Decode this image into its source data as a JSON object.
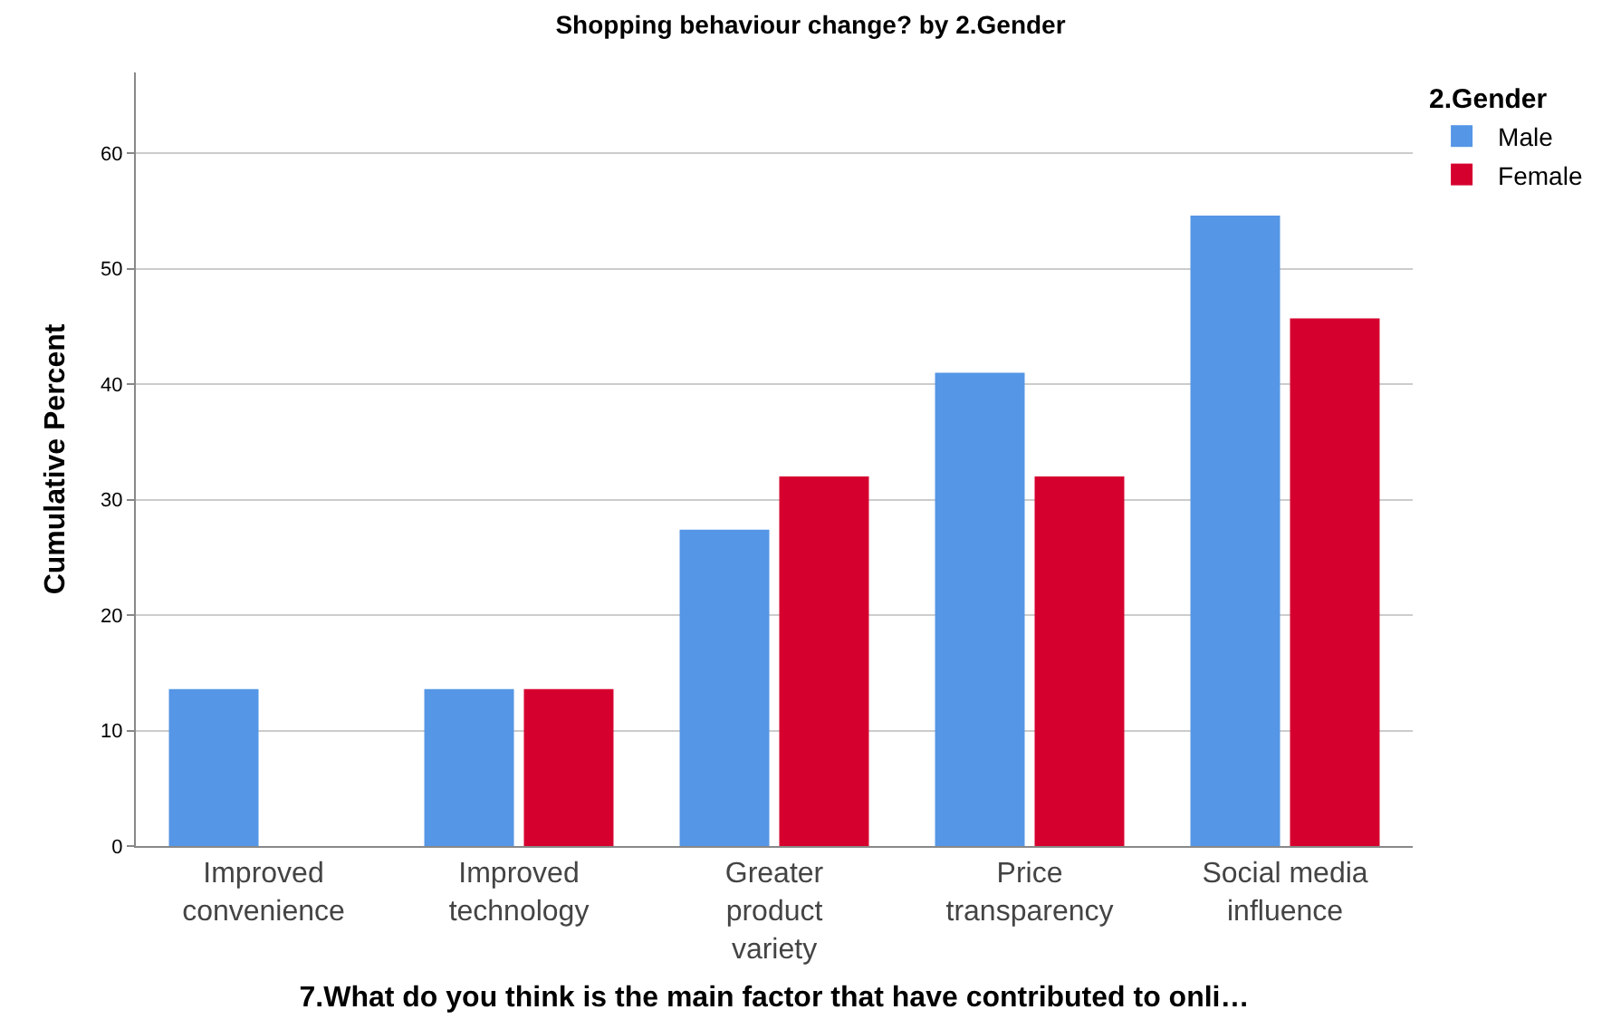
{
  "chart_data": {
    "type": "bar",
    "title": "Shopping behaviour change? by 2.Gender",
    "xlabel": "7.What do you think is the main factor that have contributed to onli…",
    "ylabel": "Cumulative Percent",
    "legend_title": "2.Gender",
    "categories": [
      "Improved\nconvenience",
      "Improved\ntechnology",
      "Greater\nproduct\nvariety",
      "Price\ntransparency",
      "Social media\ninfluence"
    ],
    "series": [
      {
        "name": "Male",
        "color": "#5596e6",
        "values": [
          13.6,
          13.6,
          27.4,
          41.0,
          54.6
        ]
      },
      {
        "name": "Female",
        "color": "#d6002f",
        "values": [
          null,
          13.6,
          32.0,
          32.0,
          45.7
        ]
      }
    ],
    "ylim": [
      0,
      67
    ],
    "yticks": [
      0,
      10,
      20,
      30,
      40,
      50,
      60
    ],
    "grid": "y",
    "legend": "top right"
  }
}
